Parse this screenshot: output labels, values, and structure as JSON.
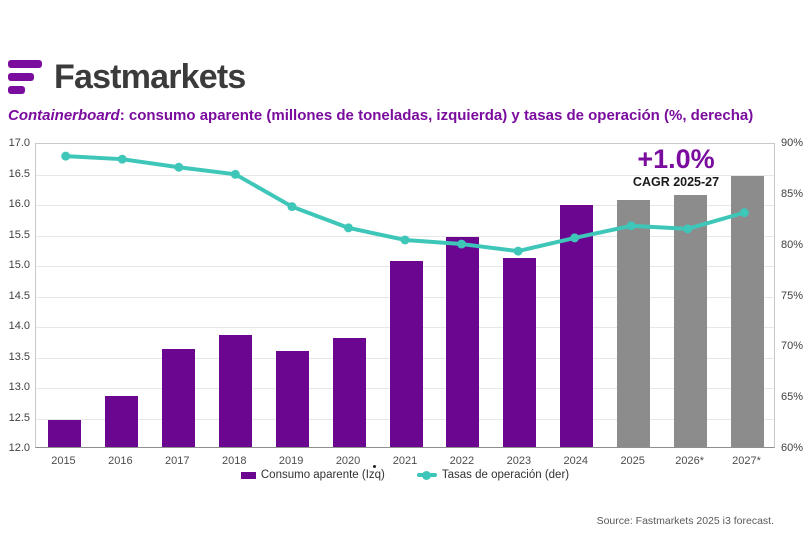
{
  "logo": {
    "wordmark": "Fastmarkets"
  },
  "title": {
    "emphasis": "Containerboard",
    "rest": ": consumo aparente (millones de toneladas, izquierda) y tasas de operación (%, derecha)"
  },
  "annotation": {
    "headline": "+1.0%",
    "subline": "CAGR 2025-27"
  },
  "legend": [
    {
      "label": "Consumo aparente (Izq)",
      "swatch": "bar"
    },
    {
      "label": "Tasas de operación (der)",
      "swatch": "line-marker"
    }
  ],
  "source": "Source: Fastmarkets 2025 i3 forecast.",
  "colors": {
    "brand_purple": "#7a0c9e",
    "bar_actual": "#6a0690",
    "bar_forecast": "#8c8c8c",
    "line_teal": "#3ec6b8",
    "title_text": "#7a0c9e",
    "wordmark_text": "#3b3b3b",
    "source_text": "#595959"
  },
  "chart_data": {
    "type": "combo-bar-line",
    "categories": [
      "2015",
      "2016",
      "2017",
      "2018",
      "2019",
      "2020",
      "2021",
      "2022",
      "2023",
      "2024",
      "2025",
      "2026*",
      "2027*"
    ],
    "series": [
      {
        "name": "Consumo aparente (Izq)",
        "type": "bar",
        "axis": "left",
        "values": [
          12.44,
          12.83,
          13.6,
          13.83,
          13.57,
          13.78,
          15.05,
          15.45,
          15.1,
          15.97,
          16.05,
          16.13,
          16.45
        ],
        "forecast_start_index": 10
      },
      {
        "name": "Tasas de operación (der)",
        "type": "line",
        "axis": "right",
        "values": [
          88.8,
          88.5,
          87.7,
          87.0,
          83.8,
          81.7,
          80.5,
          80.1,
          79.4,
          80.7,
          81.9,
          81.6,
          83.2
        ]
      }
    ],
    "left_axis": {
      "min": 12.0,
      "max": 17.0,
      "step": 0.5,
      "tick_labels": [
        "17.0",
        "16.5",
        "16.0",
        "15.5",
        "15.0",
        "14.5",
        "14.0",
        "13.5",
        "13.0",
        "12.5",
        "12.0"
      ]
    },
    "right_axis": {
      "min": 60,
      "max": 90,
      "step": 5,
      "tick_labels": [
        "90%",
        "85%",
        "80%",
        "75%",
        "70%",
        "65%",
        "60%"
      ]
    },
    "grid": "horizontal",
    "legend_position": "bottom"
  }
}
